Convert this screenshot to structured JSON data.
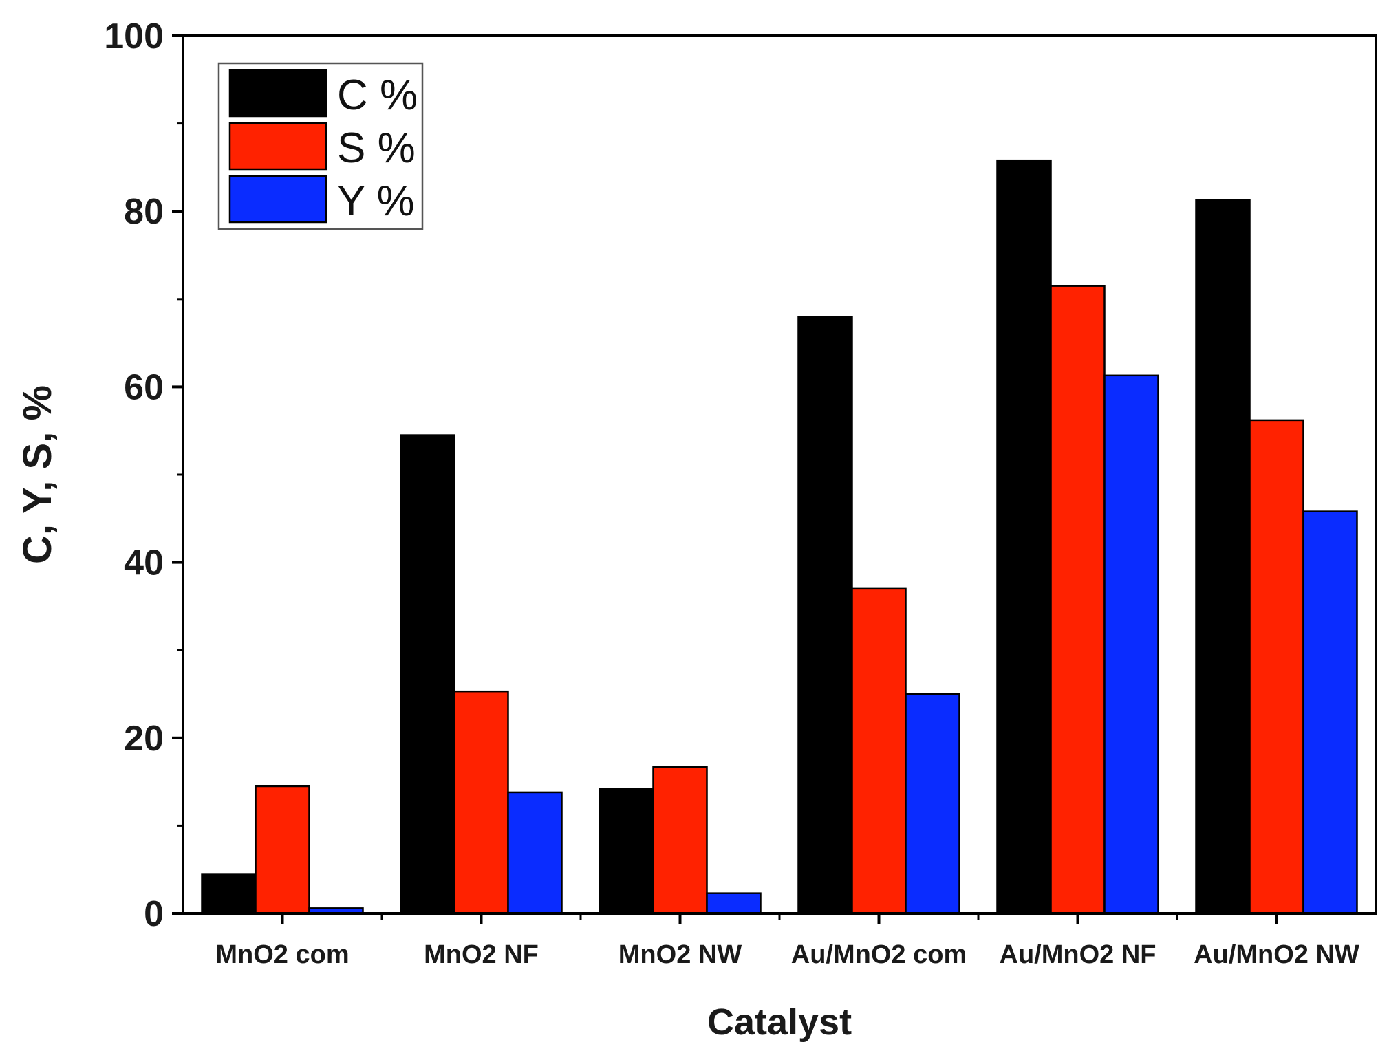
{
  "chart_data": {
    "type": "bar",
    "title": "",
    "xlabel": "Catalyst",
    "ylabel": "C, Y, S, %",
    "ylim": [
      0,
      100
    ],
    "yticks": [
      0,
      20,
      40,
      60,
      80,
      100
    ],
    "grid": false,
    "legend_position": "top-left",
    "categories": [
      "MnO2 com",
      "MnO2 NF",
      "MnO2 NW",
      "Au/MnO2 com",
      "Au/MnO2 NF",
      "Au/MnO2 NW"
    ],
    "series": [
      {
        "name": "C %",
        "color": "#000000",
        "values": [
          4.5,
          54.5,
          14.2,
          68.0,
          85.8,
          81.3
        ]
      },
      {
        "name": "S %",
        "color": "#ff2200",
        "values": [
          14.5,
          25.3,
          16.7,
          37.0,
          71.5,
          56.2
        ]
      },
      {
        "name": "Y %",
        "color": "#0a2cff",
        "values": [
          0.6,
          13.8,
          2.3,
          25.0,
          61.3,
          45.8
        ]
      }
    ]
  }
}
